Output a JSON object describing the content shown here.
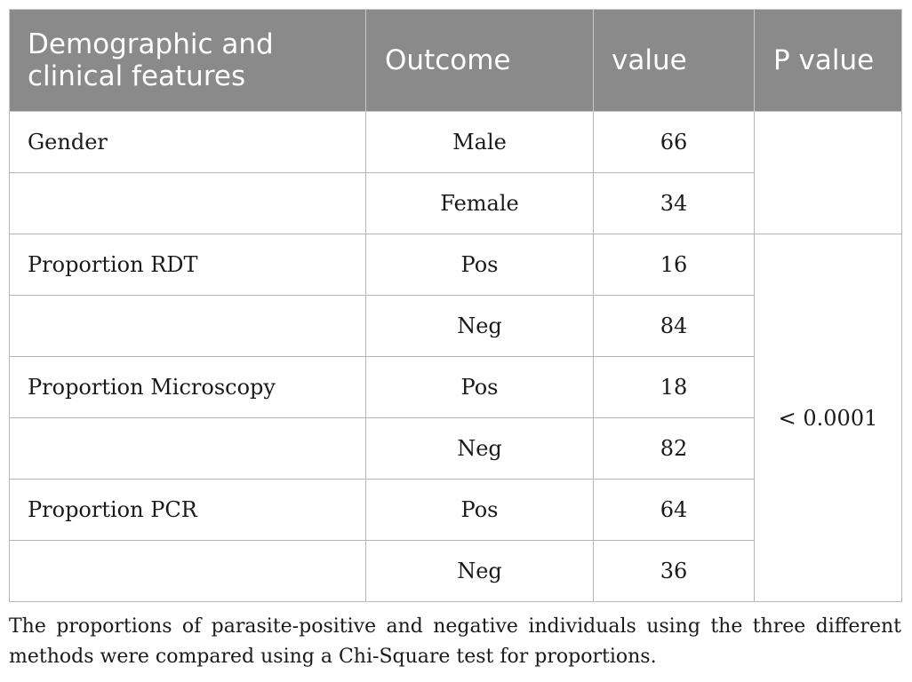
{
  "table": {
    "headers": {
      "feature": "Demographic and clinical features",
      "outcome": "Outcome",
      "value": "value",
      "p_value": "P value"
    },
    "rows": [
      {
        "feature": "Gender",
        "outcome": "Male",
        "value": "66"
      },
      {
        "feature": "",
        "outcome": "Female",
        "value": "34"
      },
      {
        "feature": "Proportion RDT",
        "outcome": "Pos",
        "value": "16"
      },
      {
        "feature": "",
        "outcome": "Neg",
        "value": "84"
      },
      {
        "feature": "Proportion Microscopy",
        "outcome": "Pos",
        "value": "18"
      },
      {
        "feature": "",
        "outcome": "Neg",
        "value": "82"
      },
      {
        "feature": "Proportion PCR",
        "outcome": "Pos",
        "value": "64"
      },
      {
        "feature": "",
        "outcome": "Neg",
        "value": "36"
      }
    ],
    "p_values": {
      "gender": "",
      "proportions": "< 0.0001"
    }
  },
  "footnote": "The proportions of parasite-positive and negative individuals using the three different methods were compared using a Chi-Square test for proportions.",
  "colors": {
    "header_bg": "#8a8a8a",
    "header_text": "#ffffff",
    "border": "#b5b5b5"
  }
}
